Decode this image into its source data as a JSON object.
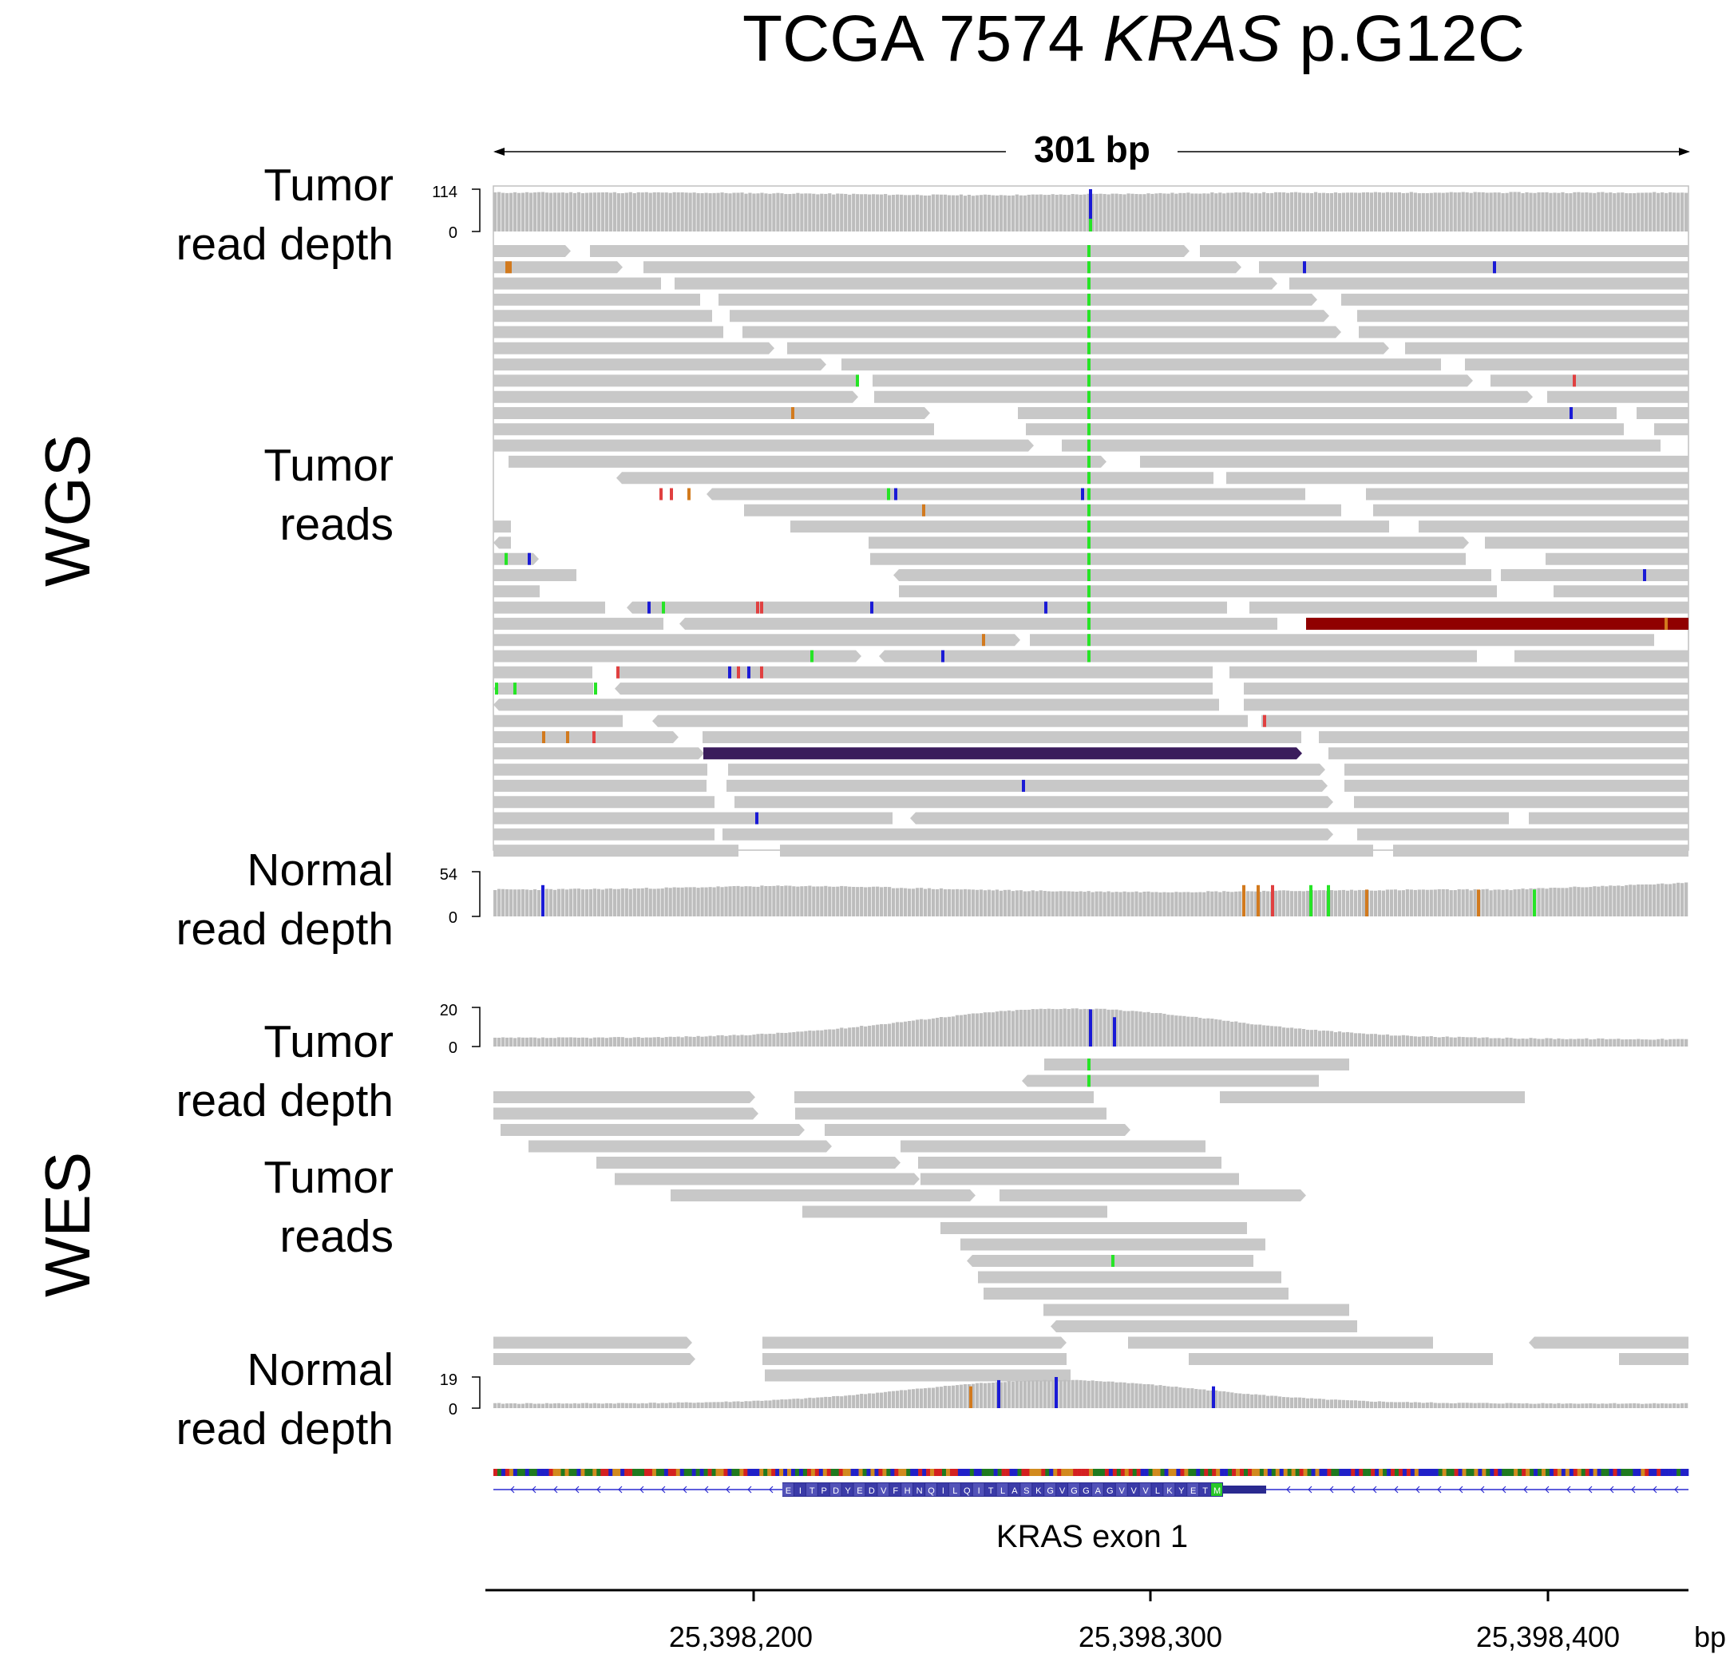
{
  "title": {
    "prefix": "TCGA 7574 ",
    "gene": "KRAS",
    "suffix": " p.G12C"
  },
  "span_label": "301 bp",
  "sections": [
    {
      "key": "wgs",
      "label": "WGS"
    },
    {
      "key": "wes",
      "label": "WES"
    }
  ],
  "tracks": {
    "wgs_tumor_depth": {
      "label": "Tumor\nread depth",
      "max": "114",
      "min": "0"
    },
    "wgs_tumor_reads": {
      "label": "Tumor\nreads"
    },
    "wgs_normal_depth": {
      "label": "Normal\nread depth",
      "max": "54",
      "min": "0"
    },
    "wes_tumor_depth": {
      "label": "Tumor\nread depth",
      "max": "20",
      "min": "0"
    },
    "wes_tumor_reads": {
      "label": "Tumor\nreads"
    },
    "wes_normal_depth": {
      "label": "Normal\nread depth",
      "max": "19",
      "min": "0"
    }
  },
  "gene_track": {
    "label": "KRAS exon 1",
    "protein_sequence": "EITPDYEDVFHNQILQITLASKGVGGAGVVVLKYETM"
  },
  "axis": {
    "unit": "bp",
    "ticks": [
      "25,398,200",
      "25,398,300",
      "25,398,400"
    ]
  },
  "colors": {
    "read": "#c8c8c8",
    "coverage": "#bdbdbd",
    "variant_g": "#26e426",
    "variant_c": "#1a1ad6",
    "variant_a": "#e04040",
    "variant_t": "#d27a1e",
    "discordant_red": "#900000",
    "discordant_purple": "#3a1c5c",
    "exon": "#2a2a90",
    "transcript_line": "#2a2ad0"
  }
}
